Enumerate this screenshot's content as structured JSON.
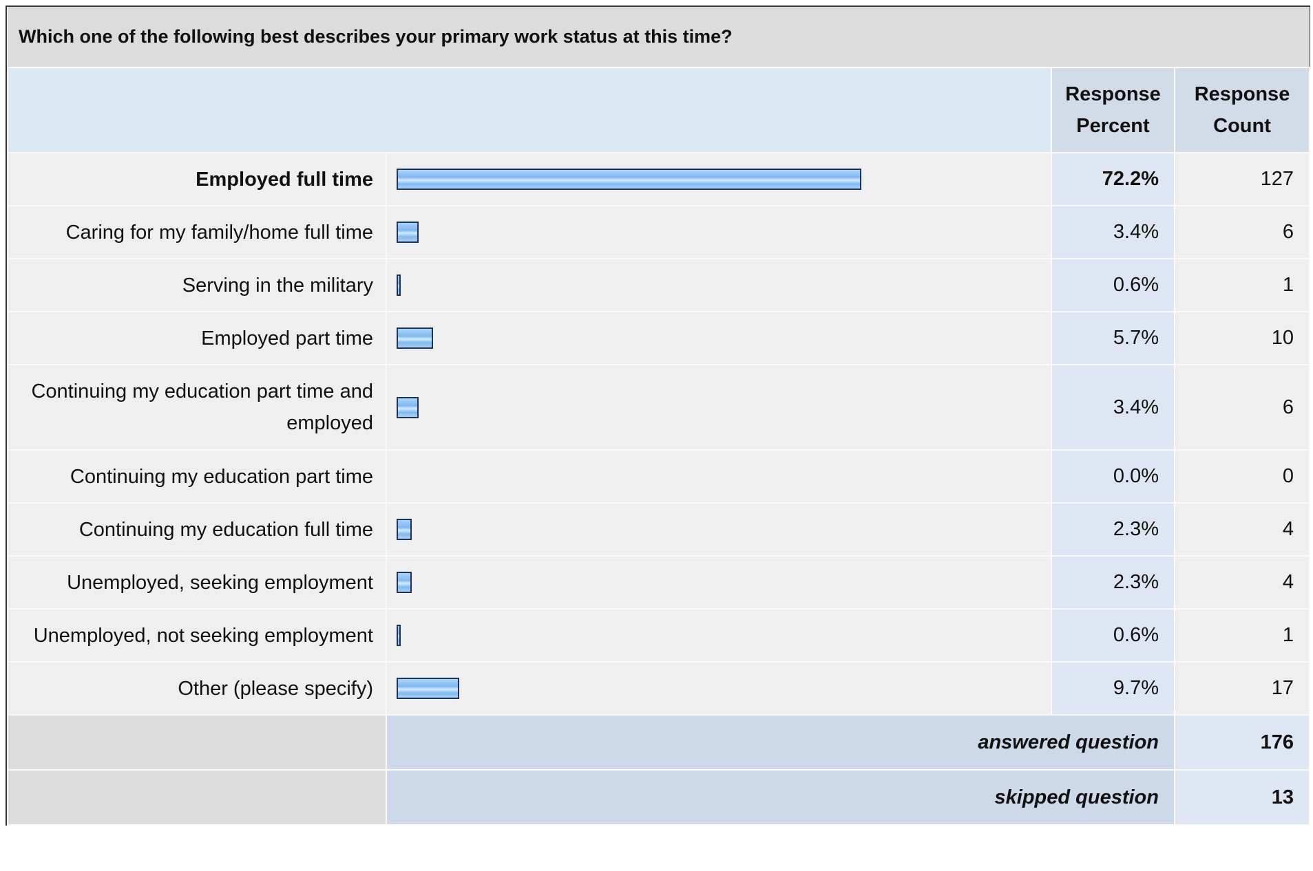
{
  "title": "Which one of the following best describes your primary work status at this time?",
  "table": {
    "headers": [
      "Response Percent",
      "Response Count"
    ],
    "rows": [
      {
        "label": "Employed full time",
        "percent": 72.2,
        "percent_label": "72.2%",
        "count": 127
      },
      {
        "label": "Caring for my family/home full time",
        "percent": 3.4,
        "percent_label": "3.4%",
        "count": 6
      },
      {
        "label": "Serving in the military",
        "percent": 0.6,
        "percent_label": "0.6%",
        "count": 1
      },
      {
        "label": "Employed part time",
        "percent": 5.7,
        "percent_label": "5.7%",
        "count": 10
      },
      {
        "label": "Continuing my education part time and employed",
        "percent": 3.4,
        "percent_label": "3.4%",
        "count": 6
      },
      {
        "label": "Continuing my education part time",
        "percent": 0.0,
        "percent_label": "0.0%",
        "count": 0
      },
      {
        "label": "Continuing my education full time",
        "percent": 2.3,
        "percent_label": "2.3%",
        "count": 4
      },
      {
        "label": "Unemployed, seeking employment",
        "percent": 2.3,
        "percent_label": "2.3%",
        "count": 4
      },
      {
        "label": "Unemployed, not seeking employment",
        "percent": 0.6,
        "percent_label": "0.6%",
        "count": 1
      },
      {
        "label": "Other (please specify)",
        "percent": 9.7,
        "percent_label": "9.7%",
        "count": 17
      }
    ],
    "footer": [
      {
        "label": "answered question",
        "value": 176
      },
      {
        "label": "skipped question",
        "value": 13
      }
    ]
  }
}
